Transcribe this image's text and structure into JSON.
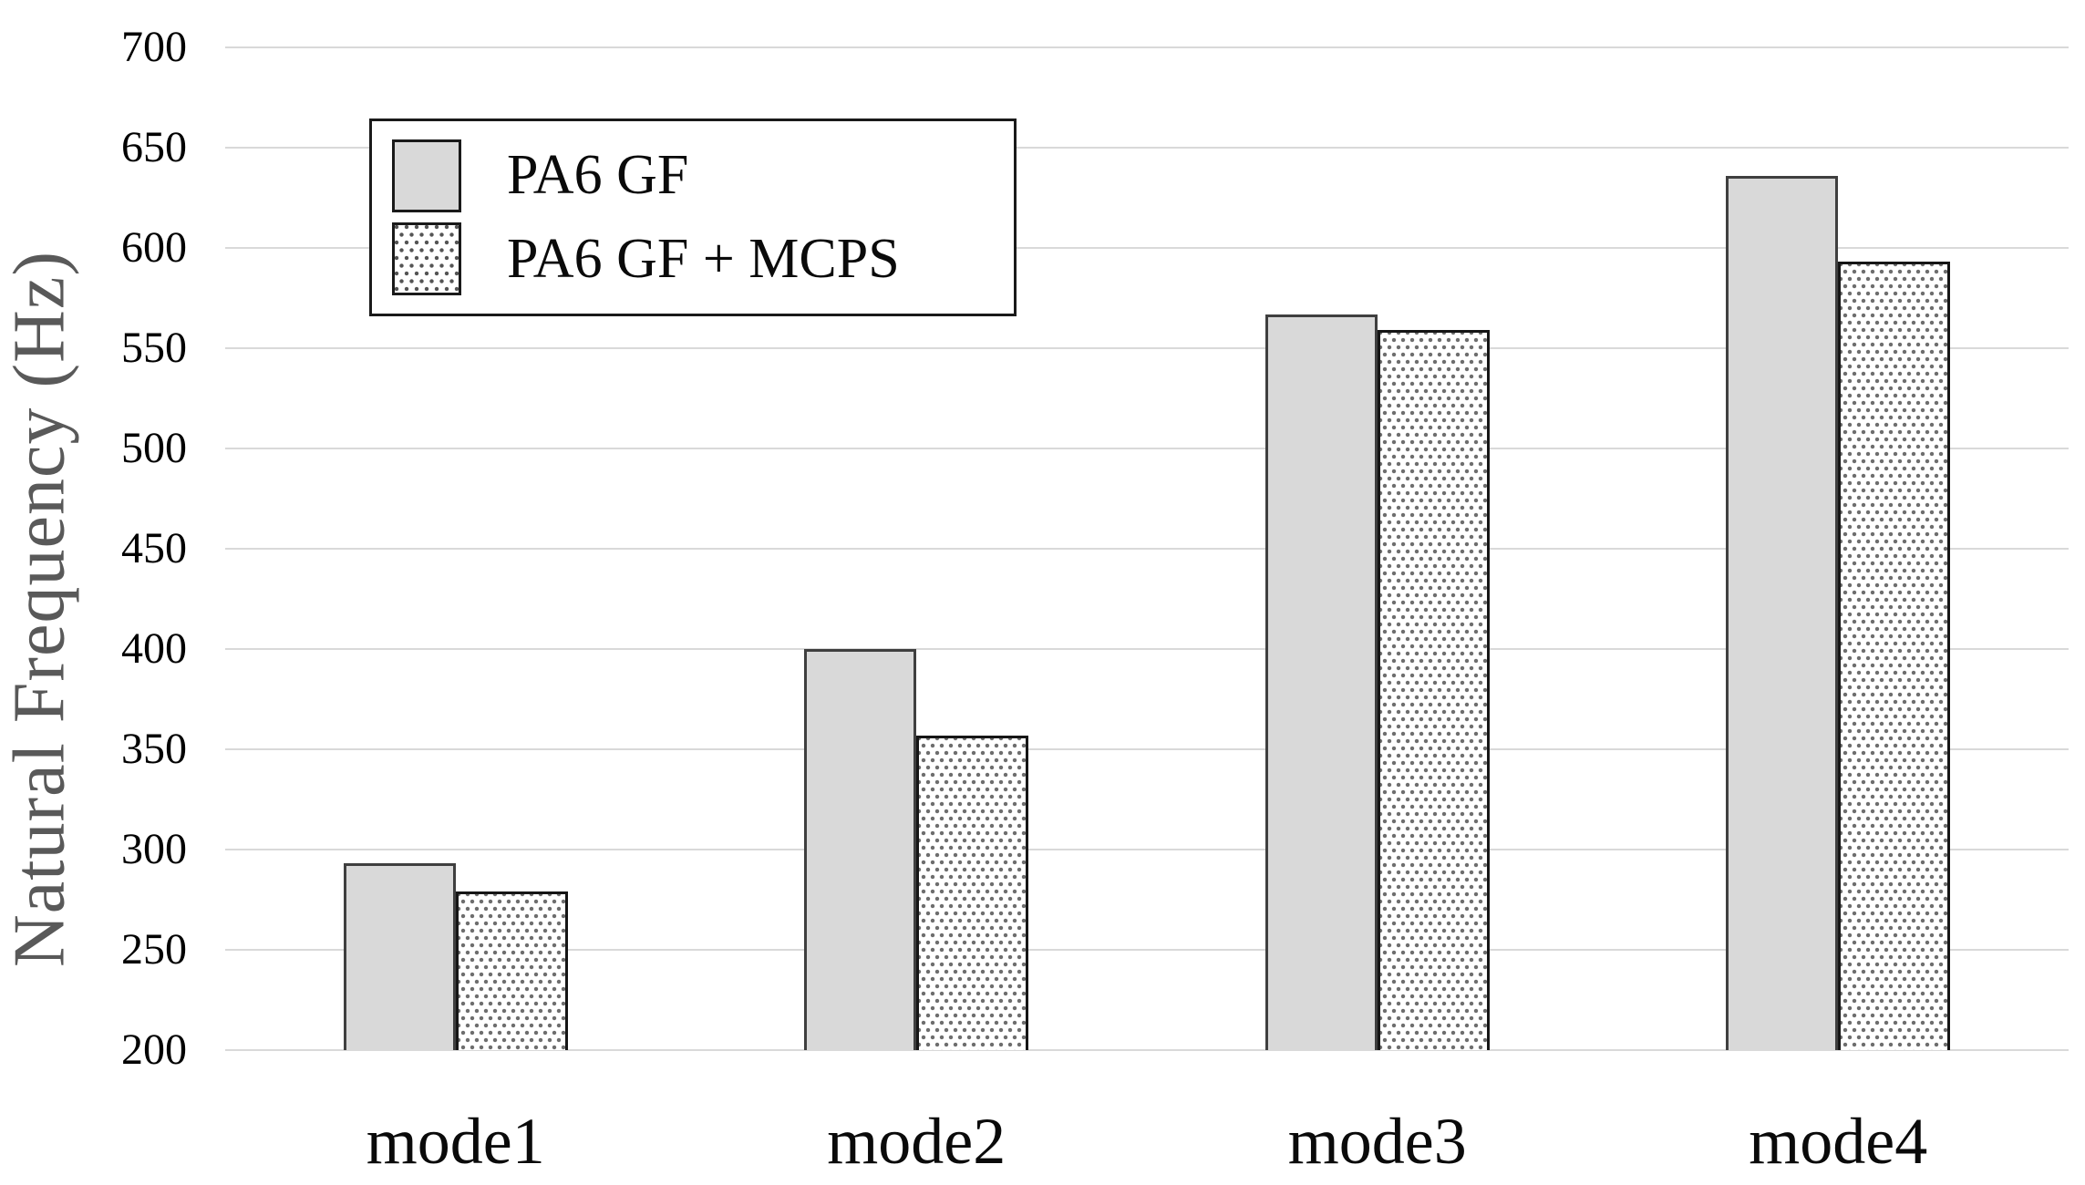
{
  "chart_data": {
    "type": "bar",
    "title": "",
    "xlabel": "",
    "ylabel": "Natural Frequency (Hz)",
    "categories": [
      "mode1",
      "mode2",
      "mode3",
      "mode4"
    ],
    "series": [
      {
        "name": "PA6 GF",
        "pattern": "solid-gray",
        "values": [
          293,
          400,
          567,
          636
        ]
      },
      {
        "name": "PA6 GF + MCPS",
        "pattern": "dots",
        "values": [
          279,
          357,
          559,
          593
        ]
      }
    ],
    "ylim": [
      200,
      700
    ],
    "ytick_step": 50,
    "yticks": [
      200,
      250,
      300,
      350,
      400,
      450,
      500,
      550,
      600,
      650,
      700
    ],
    "grid": true,
    "legend_position": "top-left"
  },
  "colors": {
    "solid_bar_fill": "#d9d9d9",
    "solid_bar_border": "#3f3f3f",
    "dotted_bar_dot": "#6e6e6e",
    "dotted_bar_border": "#161616",
    "gridline": "#d9d9d9",
    "axis_title_text": "#595959",
    "tick_text": "#000000"
  },
  "legend": {
    "items": [
      {
        "label": "PA6 GF"
      },
      {
        "label": "PA6 GF + MCPS"
      }
    ]
  }
}
